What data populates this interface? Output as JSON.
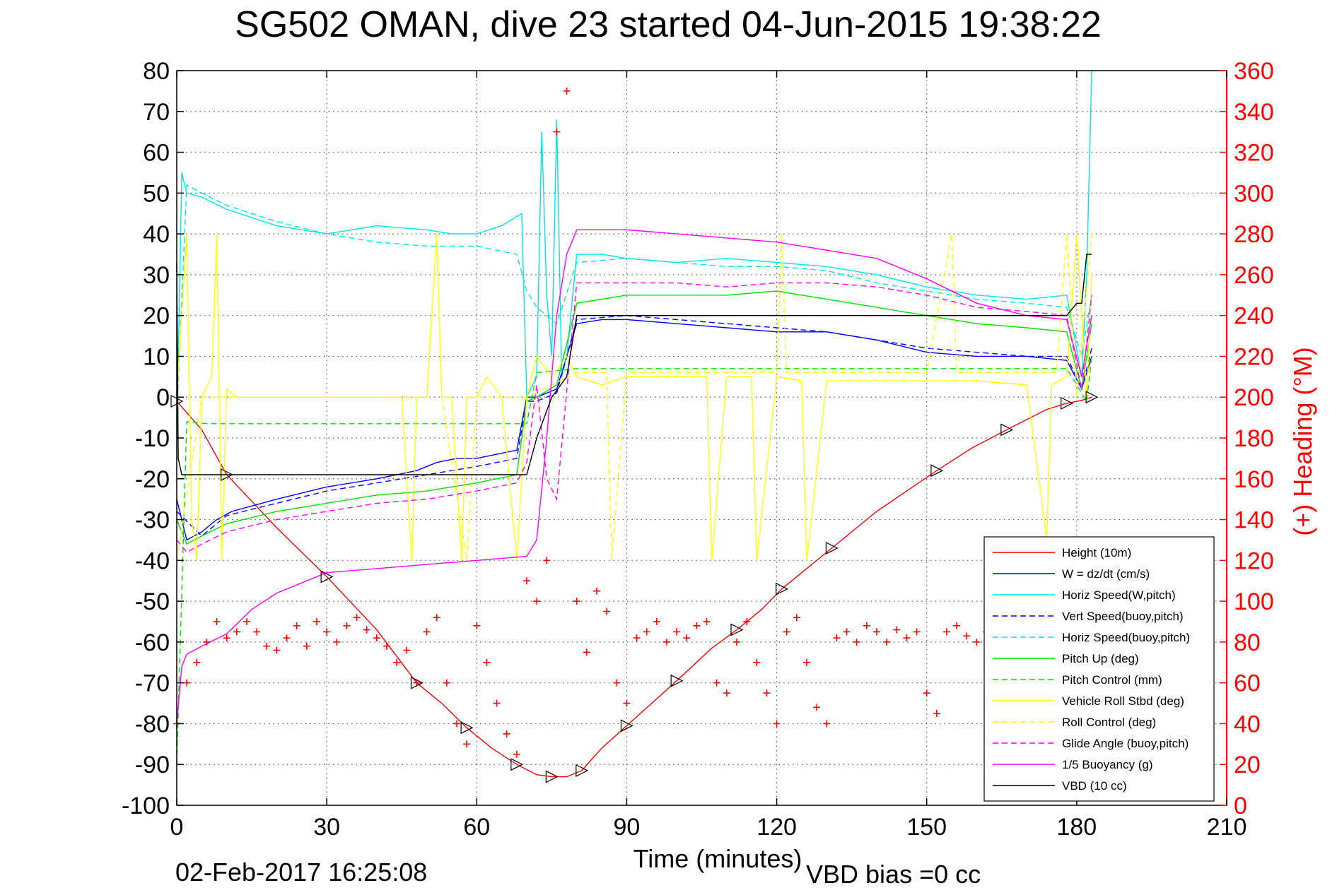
{
  "chart_data": {
    "type": "line",
    "title": "SG502 OMAN, dive 23 started 04-Jun-2015 19:38:22",
    "xlabel": "Time (minutes)",
    "ylabel_right": "(+) Heading (°M)",
    "footer_timestamp": "02-Feb-2017 16:25:08",
    "footer_note": "VBD bias =0 cc",
    "xlim": [
      0,
      210
    ],
    "ylim": [
      -100,
      80
    ],
    "ylim_right": [
      0,
      360
    ],
    "xticks": [
      0,
      30,
      60,
      90,
      120,
      150,
      180,
      210
    ],
    "yticks": [
      80,
      70,
      60,
      50,
      40,
      30,
      20,
      10,
      0,
      -10,
      -20,
      -30,
      -40,
      -50,
      -60,
      -70,
      -80,
      -90,
      -100
    ],
    "yticks_right": [
      360,
      340,
      320,
      300,
      280,
      260,
      240,
      220,
      200,
      180,
      160,
      140,
      120,
      100,
      80,
      60,
      40,
      20,
      0
    ],
    "grid": true,
    "legend_position": "bottom-right",
    "colors": {
      "red": "#ff0000",
      "blue": "#0000ff",
      "cyan": "#00e5e5",
      "green": "#00e000",
      "yellow": "#ffff00",
      "magenta": "#ff00ff",
      "black": "#000000"
    },
    "series": [
      {
        "name": "Height (10m)",
        "color": "#ff0000",
        "dash": "solid",
        "x": [
          0,
          5,
          10,
          20,
          30,
          40,
          48,
          53,
          58,
          63,
          68,
          72,
          75,
          78,
          81,
          85,
          90,
          95,
          100,
          107,
          112,
          117,
          121,
          126,
          131,
          140,
          152,
          159,
          166,
          174,
          178,
          181,
          183
        ],
        "y": [
          -1,
          -8,
          -19,
          -32,
          -44,
          -57,
          -70,
          -75,
          -81,
          -86,
          -90,
          -92.5,
          -93,
          -93,
          -91.5,
          -86,
          -80.5,
          -75,
          -69.5,
          -61.5,
          -57,
          -52,
          -47,
          -42,
          -37,
          -28,
          -18,
          -12.5,
          -8,
          -3,
          -1.5,
          -0.8,
          0
        ]
      },
      {
        "name": "W = dz/dt (cm/s)",
        "color": "#0000ff",
        "dash": "solid",
        "x": [
          0,
          1,
          2,
          5,
          8,
          11,
          20,
          30,
          40,
          48,
          52,
          56,
          60,
          64,
          68,
          70,
          72,
          76,
          80,
          85,
          90,
          100,
          110,
          120,
          130,
          140,
          150,
          160,
          170,
          178,
          181,
          183
        ],
        "y": [
          -25,
          -30,
          -35,
          -33,
          -30,
          -28,
          -25,
          -22,
          -20,
          -18,
          -16,
          -15,
          -15,
          -14,
          -13,
          0,
          0,
          2,
          18,
          19,
          19,
          18,
          17,
          16,
          16,
          14,
          11,
          10,
          10,
          9,
          2,
          10
        ]
      },
      {
        "name": "Horiz Speed(W,pitch)",
        "color": "#00e5e5",
        "dash": "solid",
        "x": [
          0,
          1,
          2,
          5,
          10,
          20,
          30,
          40,
          50,
          55,
          60,
          65,
          69,
          70,
          72,
          73,
          74,
          75,
          76,
          77,
          78,
          80,
          85,
          90,
          100,
          110,
          120,
          130,
          140,
          150,
          160,
          170,
          178,
          181,
          182,
          183
        ],
        "y": [
          -10,
          55,
          50,
          49,
          46,
          42,
          40,
          42,
          41,
          40,
          40,
          42,
          45,
          0,
          5,
          65,
          25,
          10,
          68,
          5,
          10,
          35,
          35,
          34,
          33,
          34,
          33,
          32,
          30,
          27,
          25,
          24,
          25,
          5,
          30,
          80
        ]
      },
      {
        "name": "Vert Speed(buoy,pitch)",
        "color": "#0000ff",
        "dash": "dashed",
        "x": [
          0,
          5,
          10,
          20,
          30,
          40,
          50,
          60,
          68,
          70,
          72,
          76,
          80,
          90,
          100,
          110,
          120,
          130,
          140,
          150,
          160,
          170,
          178,
          181,
          183
        ],
        "y": [
          -28,
          -34,
          -29,
          -26,
          -23,
          -21,
          -19,
          -17,
          -15,
          -1,
          -1,
          1,
          19,
          20,
          19,
          18,
          17,
          16,
          14,
          12,
          11,
          10,
          10,
          2,
          12
        ]
      },
      {
        "name": "Horiz Speed(buoy,pitch)",
        "color": "#00e5e5",
        "dash": "dashed",
        "x": [
          0,
          2,
          5,
          10,
          20,
          30,
          40,
          50,
          60,
          68,
          70,
          72,
          76,
          80,
          90,
          100,
          110,
          120,
          130,
          140,
          150,
          160,
          170,
          178,
          181,
          183
        ],
        "y": [
          -5,
          52,
          50,
          47,
          43,
          40,
          38,
          37,
          37,
          35,
          26,
          22,
          18,
          33,
          34,
          33,
          32,
          32,
          31,
          28,
          26,
          24,
          23,
          22,
          10,
          25
        ]
      },
      {
        "name": "Pitch Up (deg)",
        "color": "#00e000",
        "dash": "solid",
        "x": [
          0,
          2,
          5,
          10,
          20,
          30,
          40,
          50,
          60,
          68,
          70,
          72,
          76,
          80,
          90,
          100,
          110,
          120,
          130,
          140,
          150,
          160,
          170,
          178,
          181,
          183
        ],
        "y": [
          -30,
          -36,
          -34,
          -31,
          -28,
          -26,
          -24,
          -23,
          -21,
          -19,
          -1,
          0,
          3,
          23,
          25,
          25,
          25,
          26,
          24,
          22,
          20,
          18,
          17,
          16,
          2,
          18
        ]
      },
      {
        "name": "Pitch Control (mm)",
        "color": "#00e000",
        "dash": "dashed",
        "x": [
          0,
          2,
          6,
          70,
          72,
          80,
          178,
          182,
          183
        ],
        "y": [
          -90,
          -6,
          -6.5,
          -6.5,
          6,
          7,
          7,
          -1,
          10
        ]
      },
      {
        "name": "Vehicle Roll Stbd (deg)",
        "color": "#ffff00",
        "dash": "solid",
        "x": [
          0,
          2,
          3,
          4,
          5,
          7,
          8,
          9,
          10,
          12,
          15,
          30,
          45,
          47,
          48,
          50,
          52,
          53,
          55,
          57,
          58,
          60,
          62,
          65,
          68,
          70,
          72,
          75,
          78,
          80,
          85,
          90,
          100,
          106,
          107,
          110,
          115,
          116,
          120,
          125,
          126,
          130,
          140,
          150,
          160,
          170,
          174,
          175,
          178,
          180,
          182,
          183
        ],
        "y": [
          0,
          40,
          -30,
          -40,
          0,
          5,
          40,
          -40,
          2,
          0,
          0,
          0,
          0,
          -40,
          0,
          0,
          40,
          0,
          0,
          -40,
          0,
          0,
          5,
          0,
          -40,
          0,
          10,
          5,
          10,
          5,
          3,
          5,
          5,
          5,
          -40,
          5,
          5,
          -40,
          5,
          4,
          -40,
          4,
          4,
          4,
          4,
          3,
          -35,
          3,
          5,
          40,
          0,
          30
        ]
      },
      {
        "name": "Roll Control (deg)",
        "color": "#ffff00",
        "dash": "dashed",
        "x": [
          0,
          5,
          10,
          50,
          52,
          53,
          58,
          60,
          70,
          80,
          86,
          87,
          90,
          120,
          121,
          122,
          140,
          150,
          155,
          156,
          176,
          178,
          180,
          183
        ],
        "y": [
          -40,
          0,
          0,
          0,
          40,
          0,
          -40,
          0,
          0,
          6,
          6,
          -40,
          6,
          6,
          40,
          6,
          6,
          6,
          40,
          6,
          6,
          40,
          0,
          40
        ]
      },
      {
        "name": "Glide Angle (buoy,pitch)",
        "color": "#ff00ff",
        "dash": "dashed",
        "x": [
          0,
          2,
          5,
          10,
          20,
          30,
          40,
          50,
          60,
          68,
          70,
          72,
          74,
          76,
          80,
          90,
          100,
          110,
          120,
          130,
          140,
          150,
          160,
          170,
          178,
          181,
          183
        ],
        "y": [
          -35,
          -38,
          -36,
          -33,
          -30,
          -28,
          -26,
          -25,
          -23,
          -21,
          -16,
          3,
          -20,
          -25,
          28,
          28,
          28,
          27,
          28,
          28,
          27,
          25,
          22,
          21,
          20,
          2,
          25
        ]
      },
      {
        "name": "1/5 Buoyancy (g)",
        "color": "#ff00ff",
        "dash": "solid",
        "x": [
          0,
          1,
          2,
          5,
          10,
          15,
          20,
          30,
          40,
          50,
          60,
          70,
          72,
          74,
          76,
          78,
          80,
          90,
          100,
          110,
          120,
          130,
          140,
          150,
          160,
          170,
          178,
          181,
          183
        ],
        "y": [
          -80,
          -66,
          -63,
          -61,
          -58,
          -52,
          -48,
          -43,
          -42,
          -41,
          -40,
          -39,
          -35,
          -10,
          20,
          35,
          41,
          41,
          40,
          39,
          38,
          36,
          34,
          29,
          23,
          20,
          19,
          5,
          20
        ]
      },
      {
        "name": "VBD (10 cc)",
        "color": "#000000",
        "dash": "solid",
        "x": [
          0,
          0.3,
          1,
          2,
          70,
          72,
          75,
          78,
          80,
          178,
          180,
          181,
          182,
          183
        ],
        "y": [
          33,
          -15,
          -19,
          -19,
          -19,
          -10,
          0,
          5,
          20,
          20,
          23,
          23,
          35,
          35
        ]
      },
      {
        "name": "Heading",
        "color": "#ff0000",
        "marker": "+",
        "axis": "right",
        "x": [
          0,
          2,
          4,
          6,
          8,
          10,
          12,
          14,
          16,
          18,
          20,
          22,
          24,
          26,
          28,
          30,
          32,
          34,
          36,
          38,
          40,
          42,
          44,
          46,
          48,
          50,
          52,
          54,
          56,
          58,
          60,
          62,
          64,
          66,
          68,
          70,
          72,
          74,
          76,
          78,
          80,
          82,
          84,
          86,
          88,
          90,
          92,
          94,
          96,
          98,
          100,
          102,
          104,
          106,
          108,
          110,
          112,
          114,
          116,
          118,
          120,
          122,
          124,
          126,
          128,
          130,
          132,
          134,
          136,
          138,
          140,
          142,
          144,
          146,
          148,
          150,
          152,
          154,
          156,
          158,
          160,
          162,
          164,
          166,
          168,
          170,
          172,
          174,
          176,
          178,
          180,
          182
        ],
        "y": [
          40,
          60,
          70,
          80,
          90,
          82,
          85,
          90,
          85,
          78,
          76,
          82,
          88,
          78,
          90,
          85,
          80,
          88,
          92,
          86,
          82,
          78,
          70,
          76,
          60,
          85,
          92,
          60,
          40,
          30,
          88,
          70,
          50,
          35,
          25,
          110,
          100,
          120,
          330,
          350,
          100,
          75,
          105,
          95,
          60,
          50,
          82,
          85,
          90,
          80,
          85,
          82,
          88,
          90,
          60,
          55,
          80,
          90,
          70,
          55,
          40,
          85,
          92,
          70,
          48,
          40,
          82,
          85,
          80,
          88,
          85,
          80,
          86,
          82,
          85,
          55,
          45,
          85,
          88,
          83,
          80,
          85,
          82,
          78,
          84,
          80,
          76,
          82,
          85,
          88,
          80,
          84
        ]
      }
    ]
  }
}
